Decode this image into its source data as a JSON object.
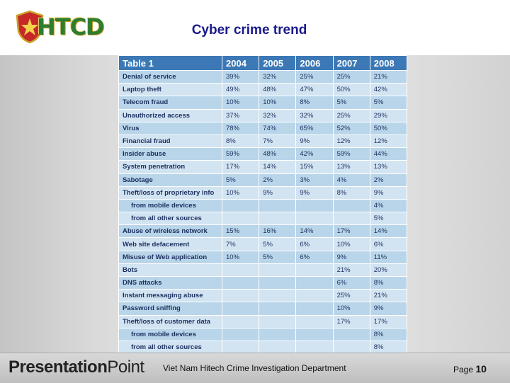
{
  "header": {
    "logo_text": "HTCD",
    "title": "Cyber crime trend"
  },
  "table": {
    "header": [
      "Table 1",
      "2004",
      "2005",
      "2006",
      "2007",
      "2008"
    ],
    "rows": [
      {
        "label": "Denial of service",
        "indent": false,
        "values": [
          "39%",
          "32%",
          "25%",
          "25%",
          "21%"
        ]
      },
      {
        "label": "Laptop theft",
        "indent": false,
        "values": [
          "49%",
          "48%",
          "47%",
          "50%",
          "42%"
        ]
      },
      {
        "label": "Telecom fraud",
        "indent": false,
        "values": [
          "10%",
          "10%",
          "8%",
          "5%",
          "5%"
        ]
      },
      {
        "label": "Unauthorized access",
        "indent": false,
        "values": [
          "37%",
          "32%",
          "32%",
          "25%",
          "29%"
        ]
      },
      {
        "label": "Virus",
        "indent": false,
        "values": [
          "78%",
          "74%",
          "65%",
          "52%",
          "50%"
        ]
      },
      {
        "label": "Financial fraud",
        "indent": false,
        "values": [
          "8%",
          "7%",
          "9%",
          "12%",
          "12%"
        ]
      },
      {
        "label": "Insider abuse",
        "indent": false,
        "values": [
          "59%",
          "48%",
          "42%",
          "59%",
          "44%"
        ]
      },
      {
        "label": "System penetration",
        "indent": false,
        "values": [
          "17%",
          "14%",
          "15%",
          "13%",
          "13%"
        ]
      },
      {
        "label": "Sabotage",
        "indent": false,
        "values": [
          "5%",
          "2%",
          "3%",
          "4%",
          "2%"
        ]
      },
      {
        "label": "Theft/loss of proprietary info",
        "indent": false,
        "values": [
          "10%",
          "9%",
          "9%",
          "8%",
          "9%"
        ]
      },
      {
        "label": "from mobile devices",
        "indent": true,
        "values": [
          "",
          "",
          "",
          "",
          "4%"
        ]
      },
      {
        "label": "from all other sources",
        "indent": true,
        "values": [
          "",
          "",
          "",
          "",
          "5%"
        ]
      },
      {
        "label": "Abuse of wireless network",
        "indent": false,
        "values": [
          "15%",
          "16%",
          "14%",
          "17%",
          "14%"
        ]
      },
      {
        "label": "Web site defacement",
        "indent": false,
        "values": [
          "7%",
          "5%",
          "6%",
          "10%",
          "6%"
        ]
      },
      {
        "label": "Misuse of Web application",
        "indent": false,
        "values": [
          "10%",
          "5%",
          "6%",
          "9%",
          "11%"
        ]
      },
      {
        "label": "Bots",
        "indent": false,
        "values": [
          "",
          "",
          "",
          "21%",
          "20%"
        ]
      },
      {
        "label": "DNS attacks",
        "indent": false,
        "values": [
          "",
          "",
          "",
          "6%",
          "8%"
        ]
      },
      {
        "label": "Instant messaging abuse",
        "indent": false,
        "values": [
          "",
          "",
          "",
          "25%",
          "21%"
        ]
      },
      {
        "label": "Password sniffing",
        "indent": false,
        "values": [
          "",
          "",
          "",
          "10%",
          "9%"
        ]
      },
      {
        "label": "Theft/loss of customer data",
        "indent": false,
        "values": [
          "",
          "",
          "",
          "17%",
          "17%"
        ]
      },
      {
        "label": "from mobile devices",
        "indent": true,
        "values": [
          "",
          "",
          "",
          "",
          "8%"
        ]
      },
      {
        "label": "from all other sources",
        "indent": true,
        "values": [
          "",
          "",
          "",
          "",
          "8%"
        ]
      }
    ]
  },
  "footer": {
    "brand_bold": "Presentation",
    "brand_light": "Point",
    "department": "Viet Nam Hitech Crime Investigation Department",
    "page_label": "Page",
    "page_number": "10"
  },
  "colors": {
    "title": "#1a1a8c",
    "table_header": "#3b78b5",
    "row_dark": "#b9d5ea",
    "row_light": "#d2e4f2",
    "logo_green": "#2f7d2f",
    "logo_gold": "#c9a227"
  }
}
